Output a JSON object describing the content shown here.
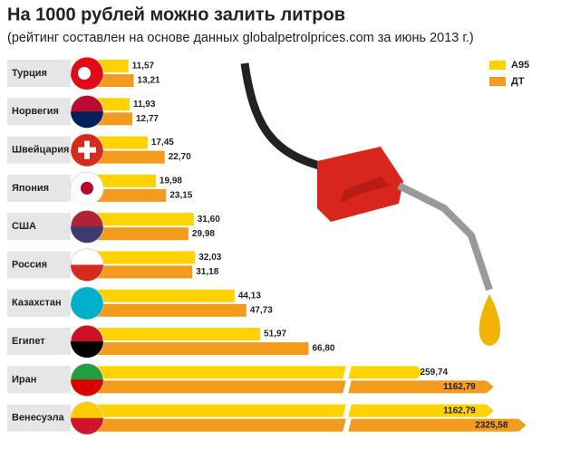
{
  "chart_data": {
    "type": "bar",
    "orientation": "horizontal",
    "title": "На 1000 рублей можно залить литров",
    "subtitle": "(рейтинг составлен на основе данных globalpetrolprices.com за июнь 2013 г.)",
    "categories": [
      "Турция",
      "Норвегия",
      "Швейцария",
      "Япония",
      "США",
      "Россия",
      "Казахстан",
      "Египет",
      "Иран",
      "Венесуэла"
    ],
    "series": [
      {
        "name": "А95",
        "color": "#ffd200",
        "values": [
          11.57,
          11.93,
          17.45,
          19.98,
          31.6,
          32.03,
          44.13,
          51.97,
          259.74,
          1162.79
        ],
        "value_labels": [
          "11,57",
          "11,93",
          "17,45",
          "19,98",
          "31,60",
          "32,03",
          "44,13",
          "51,97",
          "259,74",
          "1162,79"
        ]
      },
      {
        "name": "ДТ",
        "color": "#f39b1c",
        "values": [
          13.21,
          12.77,
          22.7,
          23.15,
          29.98,
          31.18,
          47.73,
          66.8,
          1162.79,
          2325.58
        ],
        "value_labels": [
          "13,21",
          "12,77",
          "22,70",
          "23,15",
          "29,98",
          "31,18",
          "47,73",
          "66,80",
          "1162,79",
          "2325,58"
        ]
      }
    ],
    "legend": "top-right"
  }
}
